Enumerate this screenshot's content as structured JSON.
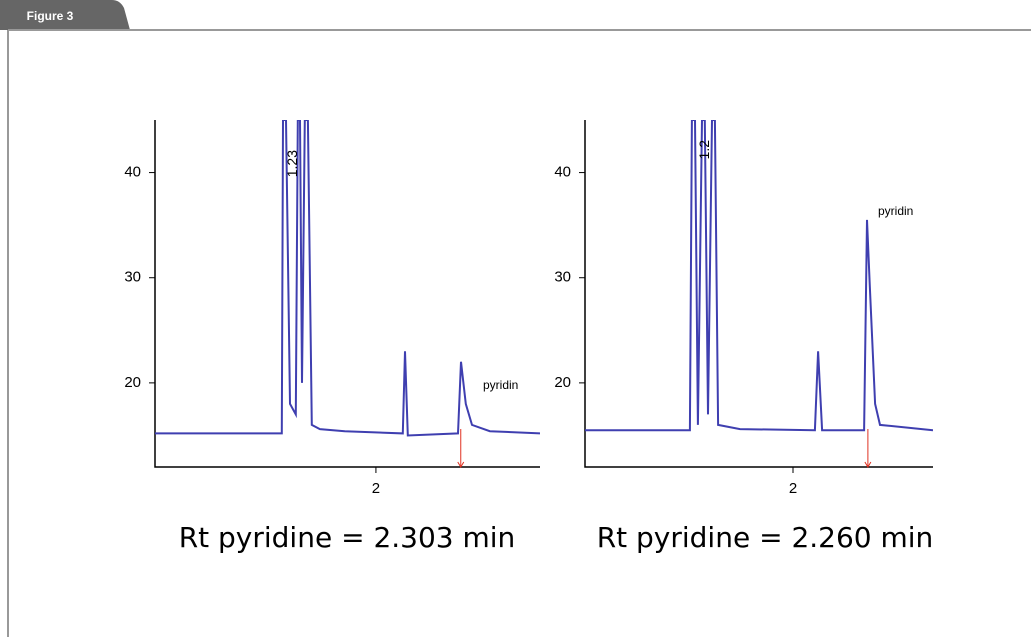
{
  "figure_label": "Figure 3",
  "chart_data": [
    {
      "type": "line",
      "caption": "Rt pyridine = 2.303 min",
      "rt": 2.303,
      "annotations": [
        "pyridin",
        "1.23"
      ],
      "xlim": [
        1.211,
        2.586
      ],
      "ylim": [
        12,
        45
      ],
      "xticks": [
        2
      ],
      "yticks": [
        20,
        30,
        40
      ],
      "series": [
        {
          "color": "#3f3fb0",
          "x": [
            1.211,
            1.664,
            1.668,
            1.679,
            1.693,
            1.714,
            1.721,
            1.729,
            1.736,
            1.746,
            1.757,
            1.771,
            1.8,
            1.889,
            2.096,
            2.104,
            2.114,
            2.293,
            2.304,
            2.321,
            2.343,
            2.407,
            2.586
          ],
          "values": [
            15.2,
            15.2,
            45,
            45,
            18,
            17,
            45,
            45,
            20,
            45,
            45,
            16,
            15.6,
            15.4,
            15.2,
            23,
            15,
            15.2,
            22,
            18,
            16,
            15.4,
            15.2
          ]
        }
      ]
    },
    {
      "type": "line",
      "caption": "Rt pyridine = 2.260 min",
      "rt": 2.26,
      "annotations": [
        "pyridin",
        "1.2"
      ],
      "xlim": [
        1.278,
        2.486
      ],
      "ylim": [
        12,
        45
      ],
      "xticks": [
        2
      ],
      "yticks": [
        20,
        30,
        40
      ],
      "series": [
        {
          "color": "#3f3fb0",
          "x": [
            1.278,
            1.642,
            1.649,
            1.66,
            1.67,
            1.684,
            1.694,
            1.705,
            1.719,
            1.729,
            1.74,
            1.816,
            2.076,
            2.087,
            2.101,
            2.247,
            2.257,
            2.267,
            2.285,
            2.302,
            2.486
          ],
          "values": [
            15.5,
            15.5,
            45,
            45,
            16,
            45,
            45,
            17,
            45,
            45,
            16,
            15.6,
            15.5,
            23,
            15.5,
            15.5,
            35.5,
            29,
            18,
            16,
            15.5
          ]
        }
      ]
    }
  ]
}
